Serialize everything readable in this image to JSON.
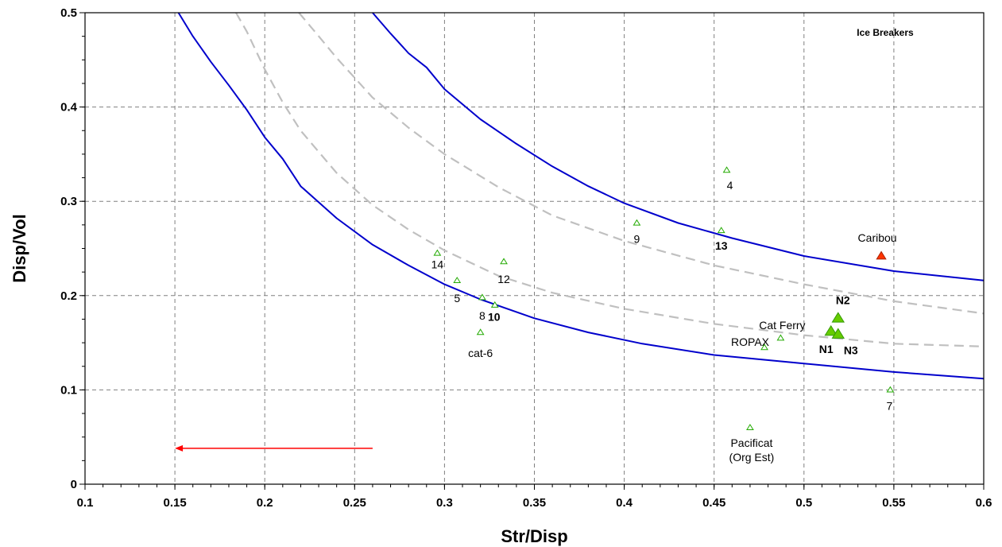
{
  "chart_data": {
    "type": "scatter",
    "title": "",
    "xlabel": "Str/Disp",
    "ylabel": "Disp/Vol",
    "xlim": [
      0.1,
      0.6
    ],
    "ylim": [
      0,
      0.5
    ],
    "grid": true,
    "x_ticks": [
      "0.1",
      "0.15",
      "0.2",
      "0.25",
      "0.3",
      "0.35",
      "0.4",
      "0.45",
      "0.5",
      "0.55",
      "0.6"
    ],
    "y_ticks": [
      "0",
      "0.1",
      "0.2",
      "0.3",
      "0.4",
      "0.5"
    ],
    "annotation": "Ice Breakers",
    "curves": [
      {
        "style": "solid",
        "color": "#0000cc",
        "points": [
          [
            0.152,
            0.5
          ],
          [
            0.16,
            0.475
          ],
          [
            0.17,
            0.448
          ],
          [
            0.18,
            0.423
          ],
          [
            0.19,
            0.397
          ],
          [
            0.2,
            0.368
          ],
          [
            0.21,
            0.345
          ],
          [
            0.22,
            0.316
          ],
          [
            0.24,
            0.282
          ],
          [
            0.26,
            0.254
          ],
          [
            0.28,
            0.232
          ],
          [
            0.3,
            0.212
          ],
          [
            0.32,
            0.196
          ],
          [
            0.35,
            0.176
          ],
          [
            0.38,
            0.161
          ],
          [
            0.41,
            0.149
          ],
          [
            0.45,
            0.137
          ],
          [
            0.5,
            0.128
          ],
          [
            0.55,
            0.119
          ],
          [
            0.6,
            0.112
          ]
        ]
      },
      {
        "style": "solid",
        "color": "#0000cc",
        "points": [
          [
            0.26,
            0.5
          ],
          [
            0.27,
            0.478
          ],
          [
            0.28,
            0.457
          ],
          [
            0.29,
            0.442
          ],
          [
            0.3,
            0.419
          ],
          [
            0.32,
            0.387
          ],
          [
            0.34,
            0.361
          ],
          [
            0.36,
            0.337
          ],
          [
            0.38,
            0.316
          ],
          [
            0.4,
            0.298
          ],
          [
            0.43,
            0.277
          ],
          [
            0.46,
            0.261
          ],
          [
            0.5,
            0.242
          ],
          [
            0.55,
            0.226
          ],
          [
            0.6,
            0.216
          ]
        ]
      },
      {
        "style": "dashed",
        "color": "#c0c0c0",
        "points": [
          [
            0.184,
            0.5
          ],
          [
            0.19,
            0.48
          ],
          [
            0.2,
            0.44
          ],
          [
            0.21,
            0.405
          ],
          [
            0.22,
            0.375
          ],
          [
            0.24,
            0.33
          ],
          [
            0.26,
            0.296
          ],
          [
            0.28,
            0.27
          ],
          [
            0.3,
            0.248
          ],
          [
            0.33,
            0.221
          ],
          [
            0.36,
            0.203
          ],
          [
            0.4,
            0.186
          ],
          [
            0.45,
            0.17
          ],
          [
            0.5,
            0.158
          ],
          [
            0.55,
            0.149
          ],
          [
            0.6,
            0.146
          ]
        ]
      },
      {
        "style": "dashed",
        "color": "#c0c0c0",
        "points": [
          [
            0.219,
            0.5
          ],
          [
            0.23,
            0.475
          ],
          [
            0.24,
            0.452
          ],
          [
            0.26,
            0.41
          ],
          [
            0.28,
            0.378
          ],
          [
            0.3,
            0.35
          ],
          [
            0.33,
            0.315
          ],
          [
            0.36,
            0.285
          ],
          [
            0.4,
            0.258
          ],
          [
            0.45,
            0.232
          ],
          [
            0.5,
            0.212
          ],
          [
            0.55,
            0.194
          ],
          [
            0.6,
            0.181
          ]
        ]
      }
    ],
    "points": [
      {
        "label": "14",
        "x": 0.296,
        "y": 0.245,
        "size": "small",
        "color": "#44cc00",
        "bold": false
      },
      {
        "label": "5",
        "x": 0.307,
        "y": 0.216,
        "size": "small",
        "color": "#44cc00",
        "bold": false
      },
      {
        "label": "8",
        "x": 0.321,
        "y": 0.198,
        "size": "small",
        "color": "#44cc00",
        "bold": false
      },
      {
        "label": "10",
        "x": 0.328,
        "y": 0.19,
        "size": "small",
        "color": "#44cc00",
        "bold": true
      },
      {
        "label": "cat-6",
        "x": 0.32,
        "y": 0.161,
        "size": "small",
        "color": "#44cc00",
        "bold": false
      },
      {
        "label": "12",
        "x": 0.333,
        "y": 0.236,
        "size": "small",
        "color": "#44cc00",
        "bold": false
      },
      {
        "label": "9",
        "x": 0.407,
        "y": 0.277,
        "size": "small",
        "color": "#44cc00",
        "bold": false
      },
      {
        "label": "4",
        "x": 0.457,
        "y": 0.333,
        "size": "small",
        "color": "#44cc00",
        "bold": false
      },
      {
        "label": "13",
        "x": 0.454,
        "y": 0.269,
        "size": "small",
        "color": "#44cc00",
        "bold": true
      },
      {
        "label": "ROPAX",
        "x": 0.478,
        "y": 0.145,
        "size": "small",
        "color": "#44cc00",
        "bold": false
      },
      {
        "label": "Cat Ferry",
        "x": 0.487,
        "y": 0.155,
        "size": "small",
        "color": "#44cc00",
        "bold": false
      },
      {
        "label": "N1",
        "x": 0.515,
        "y": 0.162,
        "size": "large",
        "color": "#66cc00",
        "bold": true
      },
      {
        "label": "N2",
        "x": 0.519,
        "y": 0.176,
        "size": "large",
        "color": "#66cc00",
        "bold": true
      },
      {
        "label": "N3",
        "x": 0.519,
        "y": 0.159,
        "size": "large",
        "color": "#66cc00",
        "bold": true
      },
      {
        "label": "Caribou",
        "x": 0.543,
        "y": 0.242,
        "size": "medium",
        "color": "#ff3300",
        "bold": false
      },
      {
        "label": "7",
        "x": 0.548,
        "y": 0.1,
        "size": "small",
        "color": "#44cc00",
        "bold": false
      },
      {
        "label": "Pacificat",
        "label2": "(Org Est)",
        "x": 0.47,
        "y": 0.06,
        "size": "small",
        "color": "#44cc00",
        "bold": false
      }
    ],
    "arrow": {
      "from": [
        0.26,
        0.038
      ],
      "to": [
        0.15,
        0.038
      ],
      "color": "#ff0000"
    }
  }
}
